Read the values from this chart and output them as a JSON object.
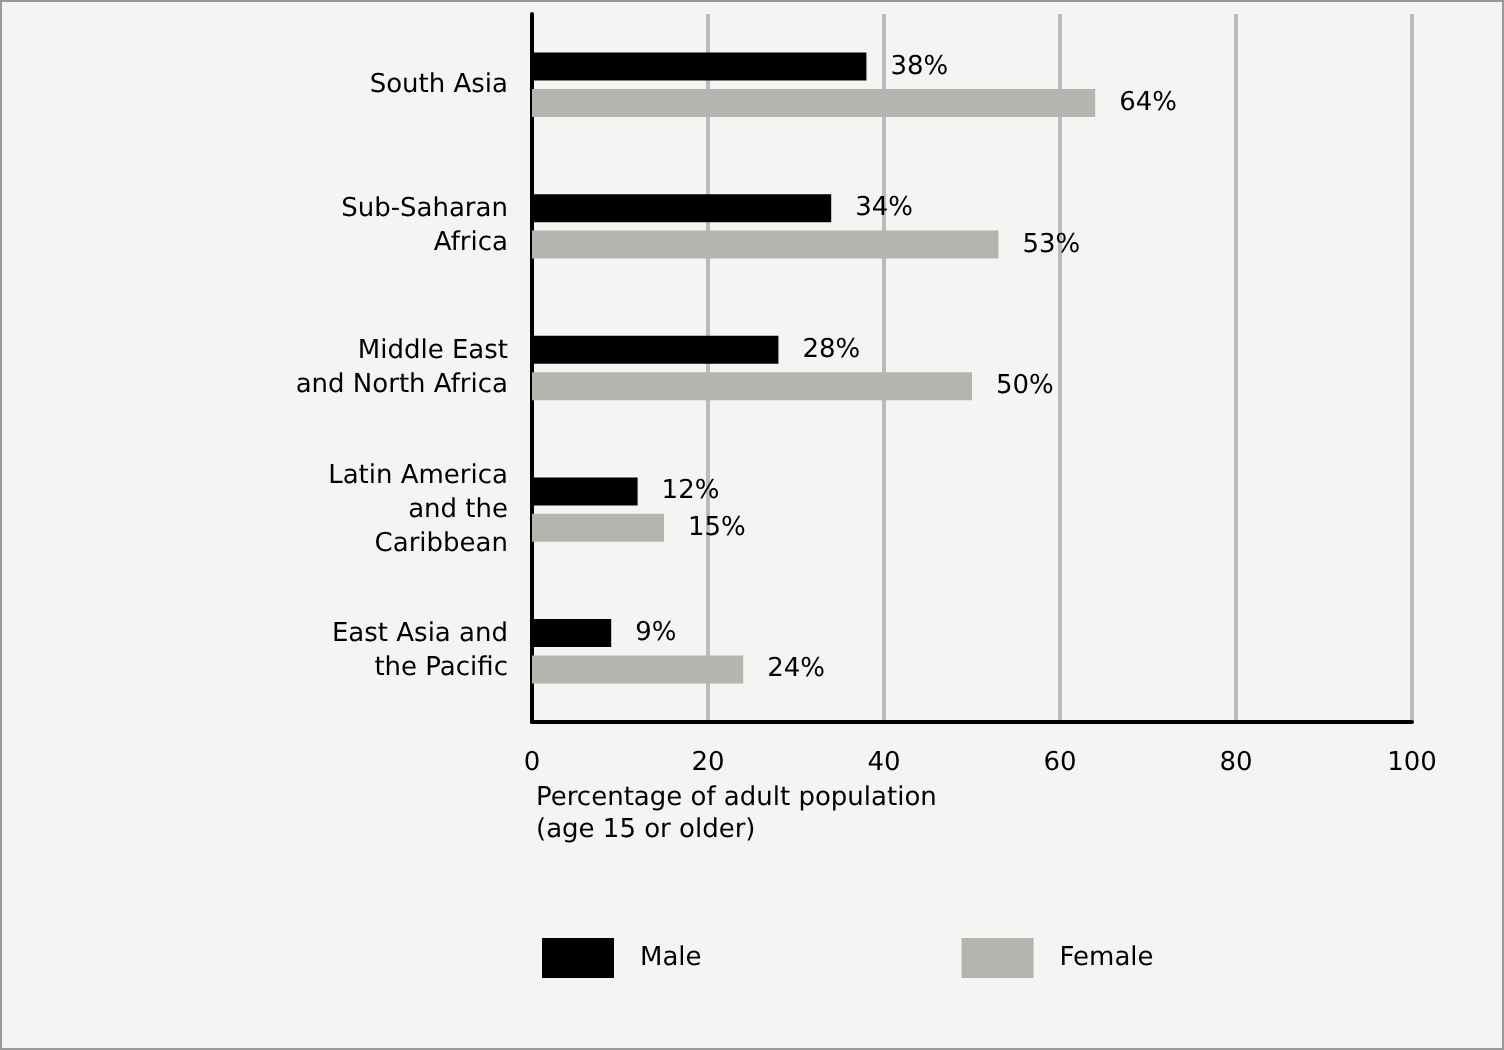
{
  "chart_data": {
    "type": "bar",
    "orientation": "horizontal",
    "categories": [
      "South Asia",
      "Sub-Saharan\nAfrica",
      "Middle East\nand North Africa",
      "Latin America\nand the\nCaribbean",
      "East Asia and\nthe Pacific"
    ],
    "series": [
      {
        "name": "Male",
        "color": "#000000",
        "values": [
          38,
          34,
          28,
          12,
          9
        ],
        "value_labels": [
          "38%",
          "34%",
          "28%",
          "12%",
          "9%"
        ]
      },
      {
        "name": "Female",
        "color": "#b3b5b0",
        "values": [
          64,
          53,
          50,
          15,
          24
        ],
        "value_labels": [
          "64%",
          "53%",
          "50%",
          "15%",
          "24%"
        ]
      }
    ],
    "xlim": [
      0,
      100
    ],
    "xticks": [
      0,
      20,
      40,
      60,
      80,
      100
    ],
    "grid": "x",
    "legend": "bottom",
    "xlabel": "Percentage of adult population\n(age 15 or older)"
  }
}
